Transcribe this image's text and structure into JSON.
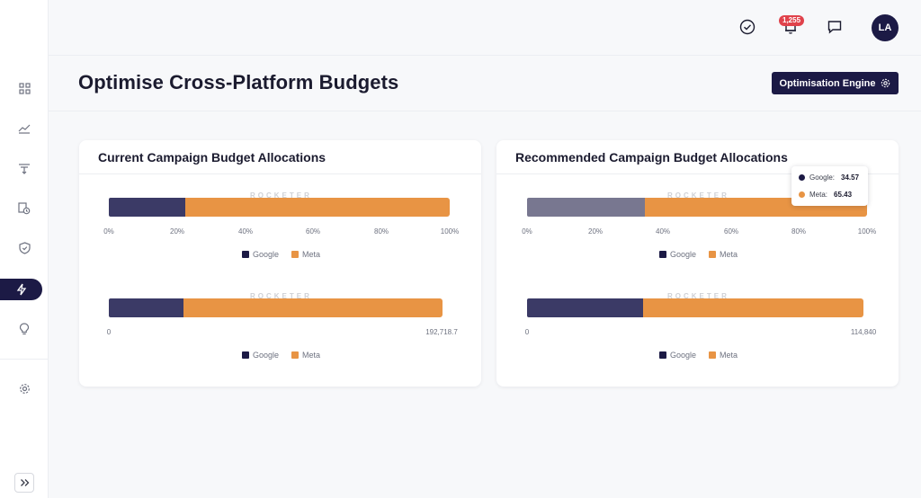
{
  "sidebar": {
    "items": [
      {
        "icon": "dashboard-grid-icon"
      },
      {
        "icon": "trend-line-icon"
      },
      {
        "icon": "funnel-filter-icon"
      },
      {
        "icon": "report-clock-icon"
      },
      {
        "icon": "shield-check-icon"
      },
      {
        "icon": "lightning-bolt-icon",
        "active": true
      },
      {
        "icon": "lightbulb-icon"
      },
      {
        "icon": "settings-gear-icon"
      }
    ],
    "expand_icon": "double-chevron-right-icon"
  },
  "topbar": {
    "notifications_count": "1,255",
    "avatar_initials": "LA"
  },
  "page": {
    "title": "Optimise Cross-Platform Budgets",
    "engine_button_label": "Optimisation Engine"
  },
  "colors": {
    "google": "#3b3a66",
    "google_dim": "#787790",
    "meta": "#e89444",
    "accent": "#1c1a45"
  },
  "watermark": "ROCKETER",
  "legend": {
    "google": "Google",
    "meta": "Meta"
  },
  "percent_ticks": [
    "0%",
    "20%",
    "40%",
    "60%",
    "80%",
    "100%"
  ],
  "current": {
    "title": "Current Campaign Budget Allocations",
    "axis_min": "0",
    "axis_max": "192,718.7"
  },
  "recommended": {
    "title": "Recommended Campaign Budget Allocations",
    "axis_min": "0",
    "axis_max": "114,840",
    "tooltip": {
      "google_label": "Google:",
      "google_value": "34.57",
      "meta_label": "Meta:",
      "meta_value": "65.43"
    }
  },
  "chart_data": [
    {
      "type": "bar",
      "title": "Current Campaign Budget Allocations",
      "orientation": "horizontal-stacked-percent",
      "series": [
        {
          "name": "Google",
          "values": [
            22.5
          ]
        },
        {
          "name": "Meta",
          "values": [
            77.5
          ]
        }
      ],
      "xlim": [
        0,
        100
      ]
    },
    {
      "type": "bar",
      "title": "Current Campaign Budget Allocations",
      "orientation": "horizontal-stacked",
      "series": [
        {
          "name": "Google",
          "values": [
            43362
          ]
        },
        {
          "name": "Meta",
          "values": [
            149356.7
          ]
        }
      ],
      "xlim": [
        0,
        192718.7
      ]
    },
    {
      "type": "bar",
      "title": "Recommended Campaign Budget Allocations",
      "orientation": "horizontal-stacked-percent",
      "series": [
        {
          "name": "Google",
          "values": [
            34.57
          ]
        },
        {
          "name": "Meta",
          "values": [
            65.43
          ]
        }
      ],
      "xlim": [
        0,
        100
      ]
    },
    {
      "type": "bar",
      "title": "Recommended Campaign Budget Allocations",
      "orientation": "horizontal-stacked",
      "series": [
        {
          "name": "Google",
          "values": [
            39700
          ]
        },
        {
          "name": "Meta",
          "values": [
            75140
          ]
        }
      ],
      "xlim": [
        0,
        114840
      ]
    }
  ]
}
